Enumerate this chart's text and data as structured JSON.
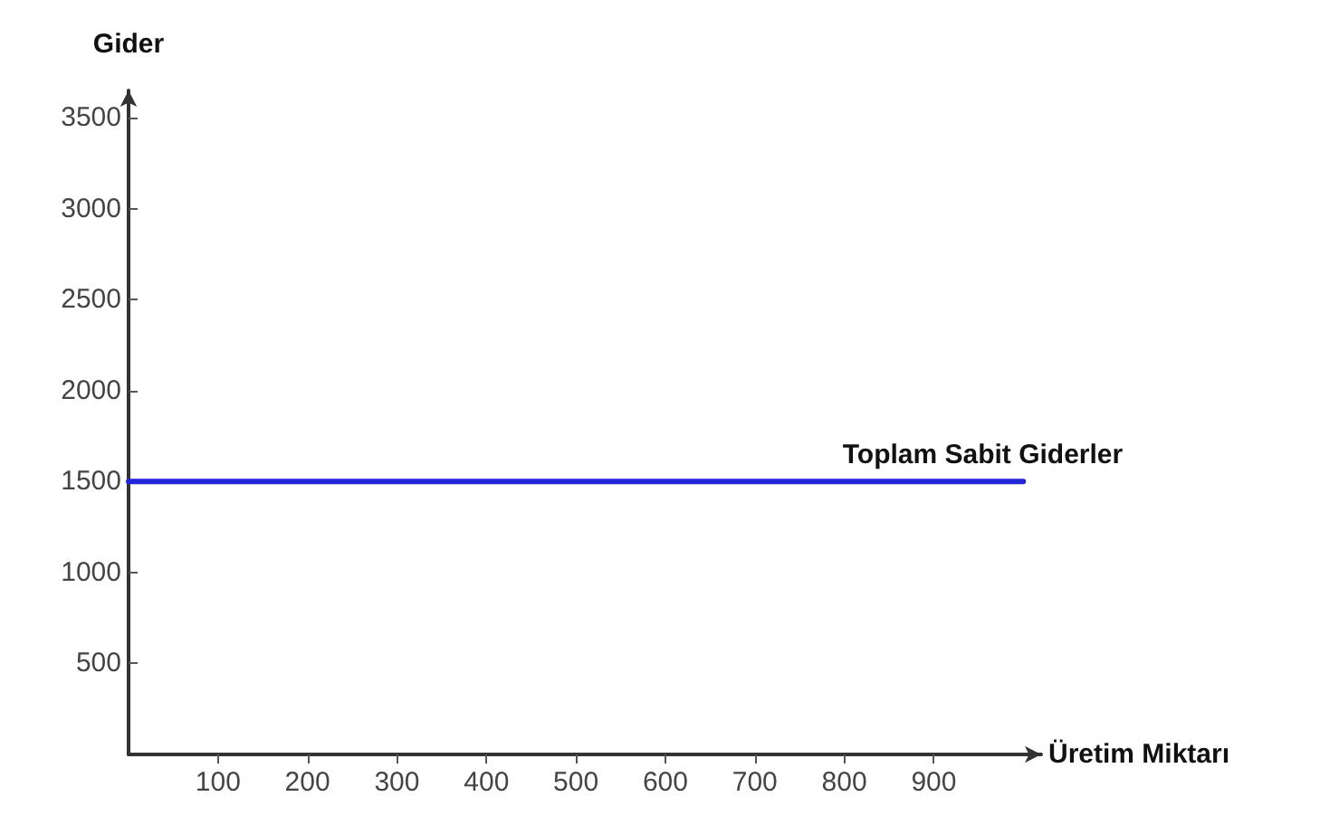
{
  "chart_data": {
    "type": "line",
    "xlabel": "Üretim Miktarı",
    "ylabel": "Gider",
    "x": [
      0,
      1000
    ],
    "series": [
      {
        "name": "Toplam Sabit Giderler",
        "color": "#2424d8",
        "values": [
          1500,
          1500
        ]
      }
    ],
    "xlim": [
      0,
      1020
    ],
    "xticks": [
      100,
      200,
      300,
      400,
      500,
      600,
      700,
      800,
      900
    ],
    "ylim": [
      0,
      3650
    ],
    "yticks": [
      500,
      1000,
      1500,
      2000,
      2500,
      3000,
      3500
    ],
    "grid": false,
    "legend": false,
    "marker": "none",
    "line_style": "solid"
  }
}
